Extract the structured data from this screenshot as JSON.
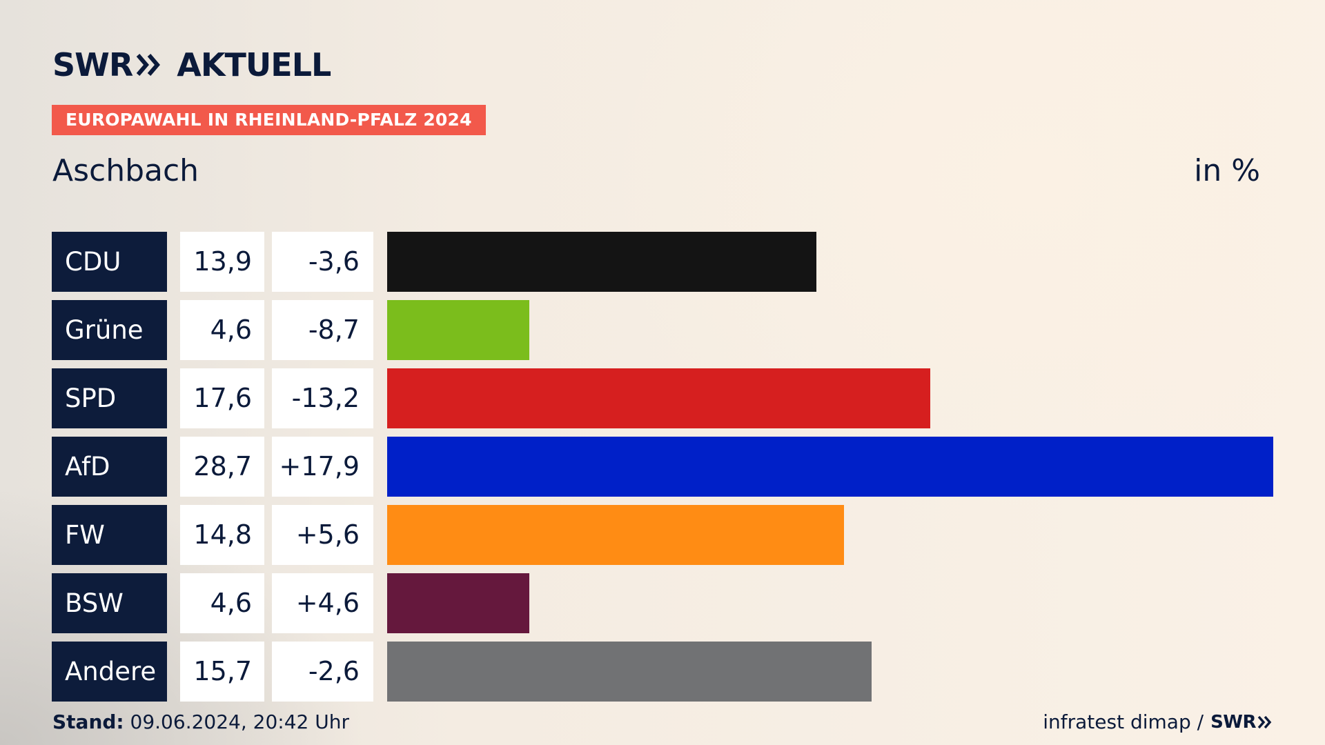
{
  "brand": {
    "logo_text_left": "SWR",
    "logo_text_right": "AKTUELL",
    "logo_icon": "double-chevron-right-icon"
  },
  "header": {
    "tag": "EUROPAWAHL IN RHEINLAND-PFALZ 2024",
    "region": "Aschbach",
    "unit": "in %"
  },
  "colors": {
    "tag_bg": "#f2594b",
    "party_label_bg": "#0d1c3b",
    "text": "#0b1a3a"
  },
  "chart_data": {
    "type": "bar",
    "orientation": "horizontal",
    "categories": [
      "CDU",
      "Grüne",
      "SPD",
      "AfD",
      "FW",
      "BSW",
      "Andere"
    ],
    "values": [
      13.9,
      4.6,
      17.6,
      28.7,
      14.8,
      4.6,
      15.7
    ],
    "value_labels": [
      "13,9",
      "4,6",
      "17,6",
      "28,7",
      "14,8",
      "4,6",
      "15,7"
    ],
    "changes": [
      -3.6,
      -8.7,
      -13.2,
      17.9,
      5.6,
      4.6,
      -2.6
    ],
    "change_labels": [
      "-3,6",
      "-8,7",
      "-13,2",
      "+17,9",
      "+5,6",
      "+4,6",
      "-2,6"
    ],
    "colors": [
      "#141414",
      "#7bbd1c",
      "#d61f1f",
      "#0020c8",
      "#ff8c14",
      "#65183d",
      "#717274"
    ],
    "grid": false,
    "legend": "none"
  },
  "footer": {
    "stand_label": "Stand:",
    "stand_value": "09.06.2024, 20:42 Uhr",
    "source": "infratest dimap /",
    "source_brand": "SWR"
  }
}
